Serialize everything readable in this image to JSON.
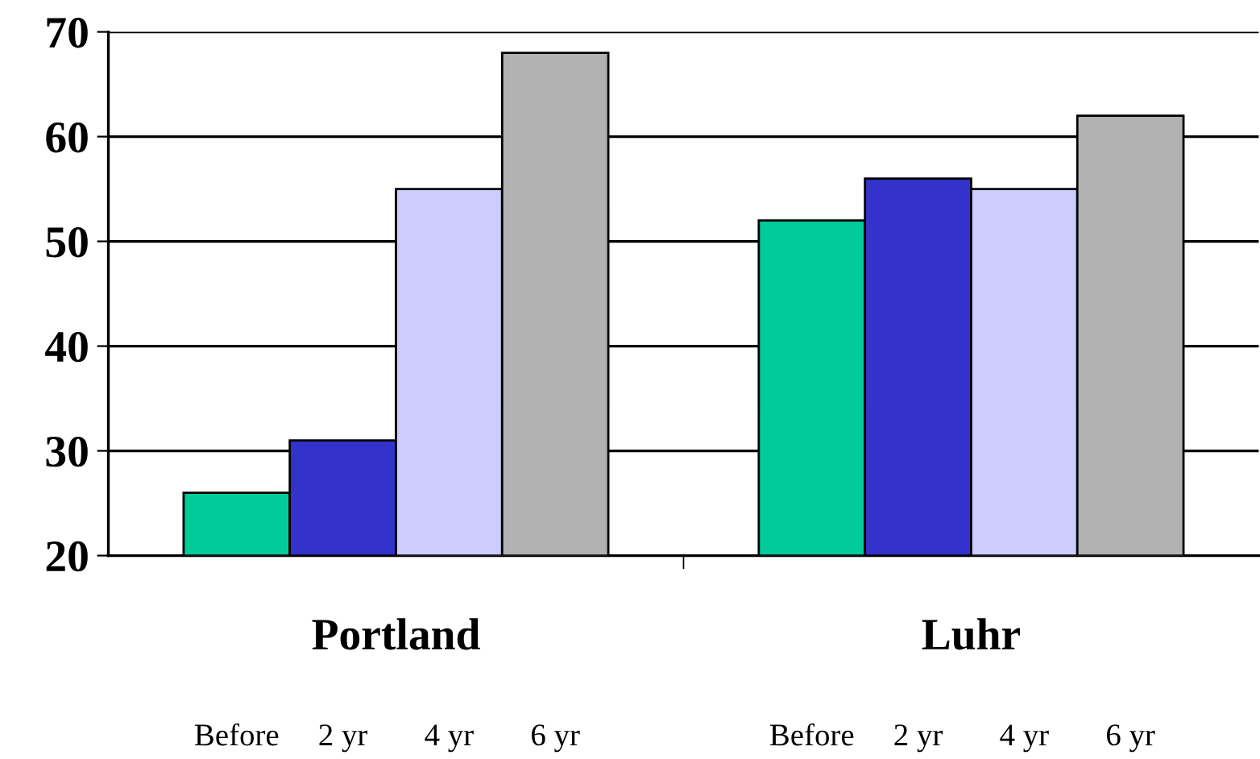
{
  "chart_data": {
    "type": "bar",
    "categories": [
      "Portland",
      "Luhr"
    ],
    "series": [
      {
        "color": "#00cc99",
        "values": [
          26,
          52
        ]
      },
      {
        "color": "#3333cc",
        "values": [
          31,
          56
        ]
      },
      {
        "color": "#ccccff",
        "values": [
          55,
          55
        ]
      },
      {
        "color": "#b2b2b2",
        "values": [
          68,
          62
        ]
      }
    ],
    "annotations": [
      "Before",
      "2 yr",
      "4 yr",
      "6 yr",
      "Before",
      "2 yr",
      "4 yr",
      "6 yr"
    ],
    "ylim": [
      20,
      70
    ],
    "yticks": [
      20,
      30,
      40,
      50,
      60,
      70
    ],
    "grid": "y",
    "legend": false
  }
}
